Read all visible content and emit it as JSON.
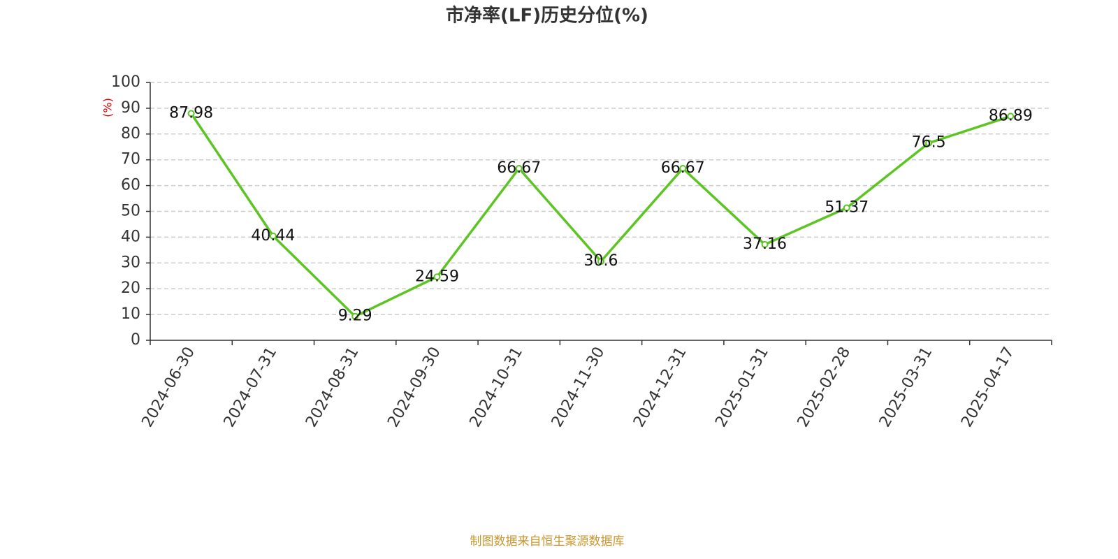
{
  "chart_data": {
    "type": "line",
    "title": "市净率(LF)历史分位(%)",
    "y_label": "(%)",
    "source": "制图数据来自恒生聚源数据库",
    "categories": [
      "2024-06-30",
      "2024-07-31",
      "2024-08-31",
      "2024-09-30",
      "2024-10-31",
      "2024-11-30",
      "2024-12-31",
      "2025-01-31",
      "2025-02-28",
      "2025-03-31",
      "2025-04-17"
    ],
    "values": [
      87.98,
      40.44,
      9.29,
      24.59,
      66.67,
      30.6,
      66.67,
      37.16,
      51.37,
      76.5,
      86.89
    ],
    "color": "#5cc423",
    "ylim": [
      0,
      100
    ],
    "yticks": [
      0,
      10,
      20,
      30,
      40,
      50,
      60,
      70,
      80,
      90,
      100
    ],
    "grid": true
  }
}
